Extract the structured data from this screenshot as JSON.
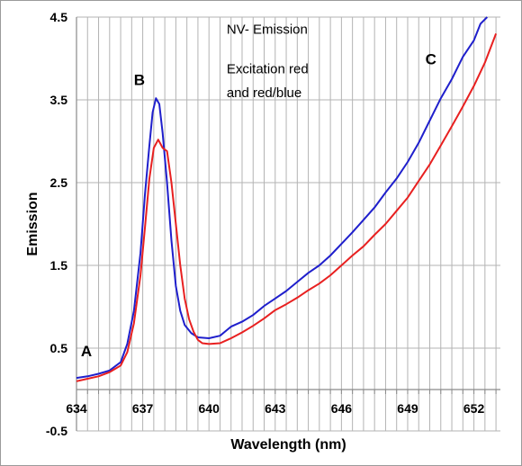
{
  "chart_data": {
    "type": "line",
    "title": "",
    "xlabel": "Wavelength (nm)",
    "ylabel": "Emission",
    "xlim": [
      634,
      653.2
    ],
    "ylim": [
      -0.5,
      4.5
    ],
    "x_tick_labels": [
      "634",
      "637",
      "640",
      "643",
      "646",
      "649",
      "652"
    ],
    "y_tick_labels": [
      "4.5",
      "3.5",
      "2.5",
      "1.5",
      "0.5",
      "-0.5"
    ],
    "x_minor_step": 0.5,
    "y_major_step": 1,
    "grid": true,
    "legend": "none",
    "annotations": [
      {
        "id": "title1",
        "text": "NV- Emission",
        "x": 640.8,
        "y": 4.3
      },
      {
        "id": "title2",
        "text": "Excitation red",
        "x": 640.8,
        "y": 3.82
      },
      {
        "id": "title3",
        "text": "and red/blue",
        "x": 640.8,
        "y": 3.53
      },
      {
        "id": "A",
        "text": "A",
        "x": 634.2,
        "y": 0.4
      },
      {
        "id": "B",
        "text": "B",
        "x": 636.6,
        "y": 3.68
      },
      {
        "id": "C",
        "text": "C",
        "x": 649.8,
        "y": 3.93
      }
    ],
    "series": [
      {
        "color": "#1f1fcc",
        "x": [
          634.0,
          634.5,
          635.0,
          635.5,
          636.0,
          636.3,
          636.6,
          636.9,
          637.1,
          637.3,
          637.45,
          637.6,
          637.75,
          637.9,
          638.1,
          638.3,
          638.5,
          638.7,
          638.9,
          639.2,
          639.5,
          640.0,
          640.5,
          641.0,
          641.5,
          642.0,
          642.5,
          643.0,
          643.5,
          644.0,
          644.5,
          645.0,
          645.5,
          646.0,
          646.5,
          647.0,
          647.5,
          648.0,
          648.5,
          649.0,
          649.5,
          650.0,
          650.5,
          651.0,
          651.5,
          652.0,
          652.3,
          652.6
        ],
        "values": [
          0.14,
          0.16,
          0.19,
          0.23,
          0.33,
          0.55,
          0.95,
          1.65,
          2.35,
          2.95,
          3.35,
          3.52,
          3.45,
          3.1,
          2.5,
          1.8,
          1.25,
          0.95,
          0.78,
          0.68,
          0.63,
          0.62,
          0.65,
          0.76,
          0.82,
          0.9,
          1.01,
          1.1,
          1.19,
          1.3,
          1.41,
          1.5,
          1.62,
          1.76,
          1.9,
          2.05,
          2.2,
          2.38,
          2.55,
          2.75,
          2.98,
          3.25,
          3.52,
          3.75,
          4.02,
          4.22,
          4.42,
          4.5
        ]
      },
      {
        "color": "#e82020",
        "x": [
          634.0,
          634.5,
          635.0,
          635.5,
          636.0,
          636.3,
          636.6,
          636.9,
          637.1,
          637.3,
          637.5,
          637.7,
          637.9,
          638.1,
          638.3,
          638.5,
          638.7,
          638.9,
          639.1,
          639.3,
          639.5,
          639.7,
          640.0,
          640.5,
          641.0,
          641.5,
          642.0,
          642.5,
          643.0,
          643.5,
          644.0,
          644.5,
          645.0,
          645.5,
          646.0,
          646.5,
          647.0,
          647.5,
          648.0,
          648.5,
          649.0,
          649.5,
          650.0,
          650.5,
          651.0,
          651.5,
          652.0,
          652.5,
          653.0
        ],
        "values": [
          0.1,
          0.13,
          0.16,
          0.21,
          0.29,
          0.45,
          0.8,
          1.38,
          1.95,
          2.55,
          2.92,
          3.02,
          2.92,
          2.88,
          2.5,
          2.0,
          1.5,
          1.1,
          0.85,
          0.7,
          0.6,
          0.56,
          0.55,
          0.56,
          0.62,
          0.69,
          0.77,
          0.86,
          0.96,
          1.03,
          1.11,
          1.2,
          1.28,
          1.38,
          1.5,
          1.62,
          1.73,
          1.87,
          2.0,
          2.16,
          2.32,
          2.52,
          2.72,
          2.95,
          3.18,
          3.42,
          3.67,
          3.95,
          4.3
        ]
      }
    ]
  }
}
